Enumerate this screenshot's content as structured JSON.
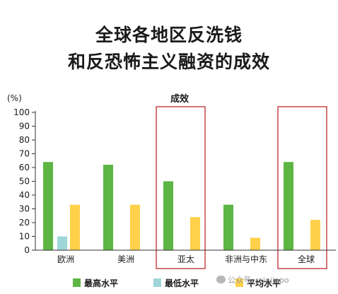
{
  "title_line1": "全球各地区反洗钱",
  "title_line2": "和反恐怖主义融资的成效",
  "watermark": "公众号 · xinjiapo",
  "chart_data": {
    "type": "bar",
    "title": "全球各地区反洗钱和反恐怖主义融资的成效",
    "annotation": "成效",
    "ylabel": "(%)",
    "ylim": [
      0,
      100
    ],
    "yticks": [
      0,
      10,
      20,
      30,
      40,
      50,
      60,
      70,
      80,
      90,
      100
    ],
    "grid": false,
    "legend_position": "bottom",
    "categories": [
      "欧洲",
      "美洲",
      "亚太",
      "非洲与中东",
      "全球"
    ],
    "highlighted_categories": [
      "亚太",
      "全球"
    ],
    "series": [
      {
        "name": "最高水平",
        "color": "#5db544",
        "values": [
          64,
          62,
          50,
          33,
          64
        ]
      },
      {
        "name": "最低水平",
        "color": "#9fd6da",
        "values": [
          10,
          0,
          0,
          0,
          0
        ]
      },
      {
        "name": "平均水平",
        "color": "#ffd04a",
        "values": [
          33,
          33,
          24,
          9,
          22
        ]
      }
    ],
    "highlight_color": "#c0282f",
    "axis_color": "#333333"
  }
}
